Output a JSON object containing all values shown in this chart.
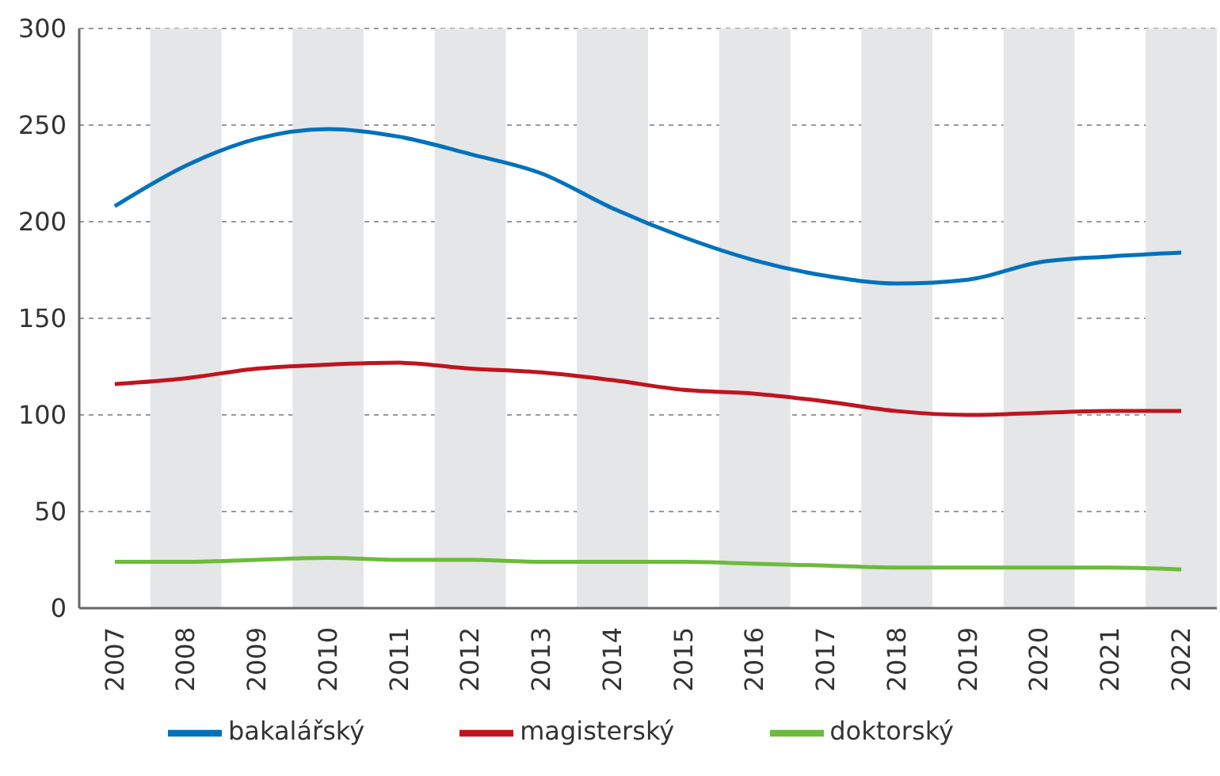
{
  "chart_data": {
    "type": "line",
    "categories": [
      "2007",
      "2008",
      "2009",
      "2010",
      "2011",
      "2012",
      "2013",
      "2014",
      "2015",
      "2016",
      "2017",
      "2018",
      "2019",
      "2020",
      "2021",
      "2022"
    ],
    "series": [
      {
        "name": "bakalářský",
        "color": "#0072bc",
        "values": [
          208,
          229,
          243,
          248,
          244,
          235,
          225,
          207,
          192,
          180,
          172,
          168,
          170,
          179,
          182,
          184
        ]
      },
      {
        "name": "magisterský",
        "color": "#c0141e",
        "values": [
          116,
          119,
          124,
          126,
          127,
          124,
          122,
          118,
          113,
          111,
          107,
          102,
          100,
          101,
          102,
          102
        ]
      },
      {
        "name": "doktorský",
        "color": "#6cbb3c",
        "values": [
          24,
          24,
          25,
          26,
          25,
          25,
          24,
          24,
          24,
          23,
          22,
          21,
          21,
          21,
          21,
          20
        ]
      }
    ],
    "ylim": [
      0,
      300
    ],
    "yticks": [
      0,
      50,
      100,
      150,
      200,
      250,
      300
    ],
    "grid": "y",
    "legend": "bottom",
    "marker": "none",
    "line_style": "solid",
    "bands": [
      {
        "axis": "x",
        "from": "2008",
        "to": "2008",
        "color": "#e5e6e8"
      },
      {
        "axis": "x",
        "from": "2010",
        "to": "2010",
        "color": "#e5e6e8"
      },
      {
        "axis": "x",
        "from": "2012",
        "to": "2012",
        "color": "#e5e6e8"
      },
      {
        "axis": "x",
        "from": "2014",
        "to": "2014",
        "color": "#e5e6e8"
      },
      {
        "axis": "x",
        "from": "2016",
        "to": "2016",
        "color": "#e5e6e8"
      },
      {
        "axis": "x",
        "from": "2018",
        "to": "2018",
        "color": "#e5e6e8"
      },
      {
        "axis": "x",
        "from": "2020",
        "to": "2020",
        "color": "#e5e6e8"
      },
      {
        "axis": "x",
        "from": "2022",
        "to": "2022",
        "color": "#e5e6e8"
      }
    ]
  }
}
